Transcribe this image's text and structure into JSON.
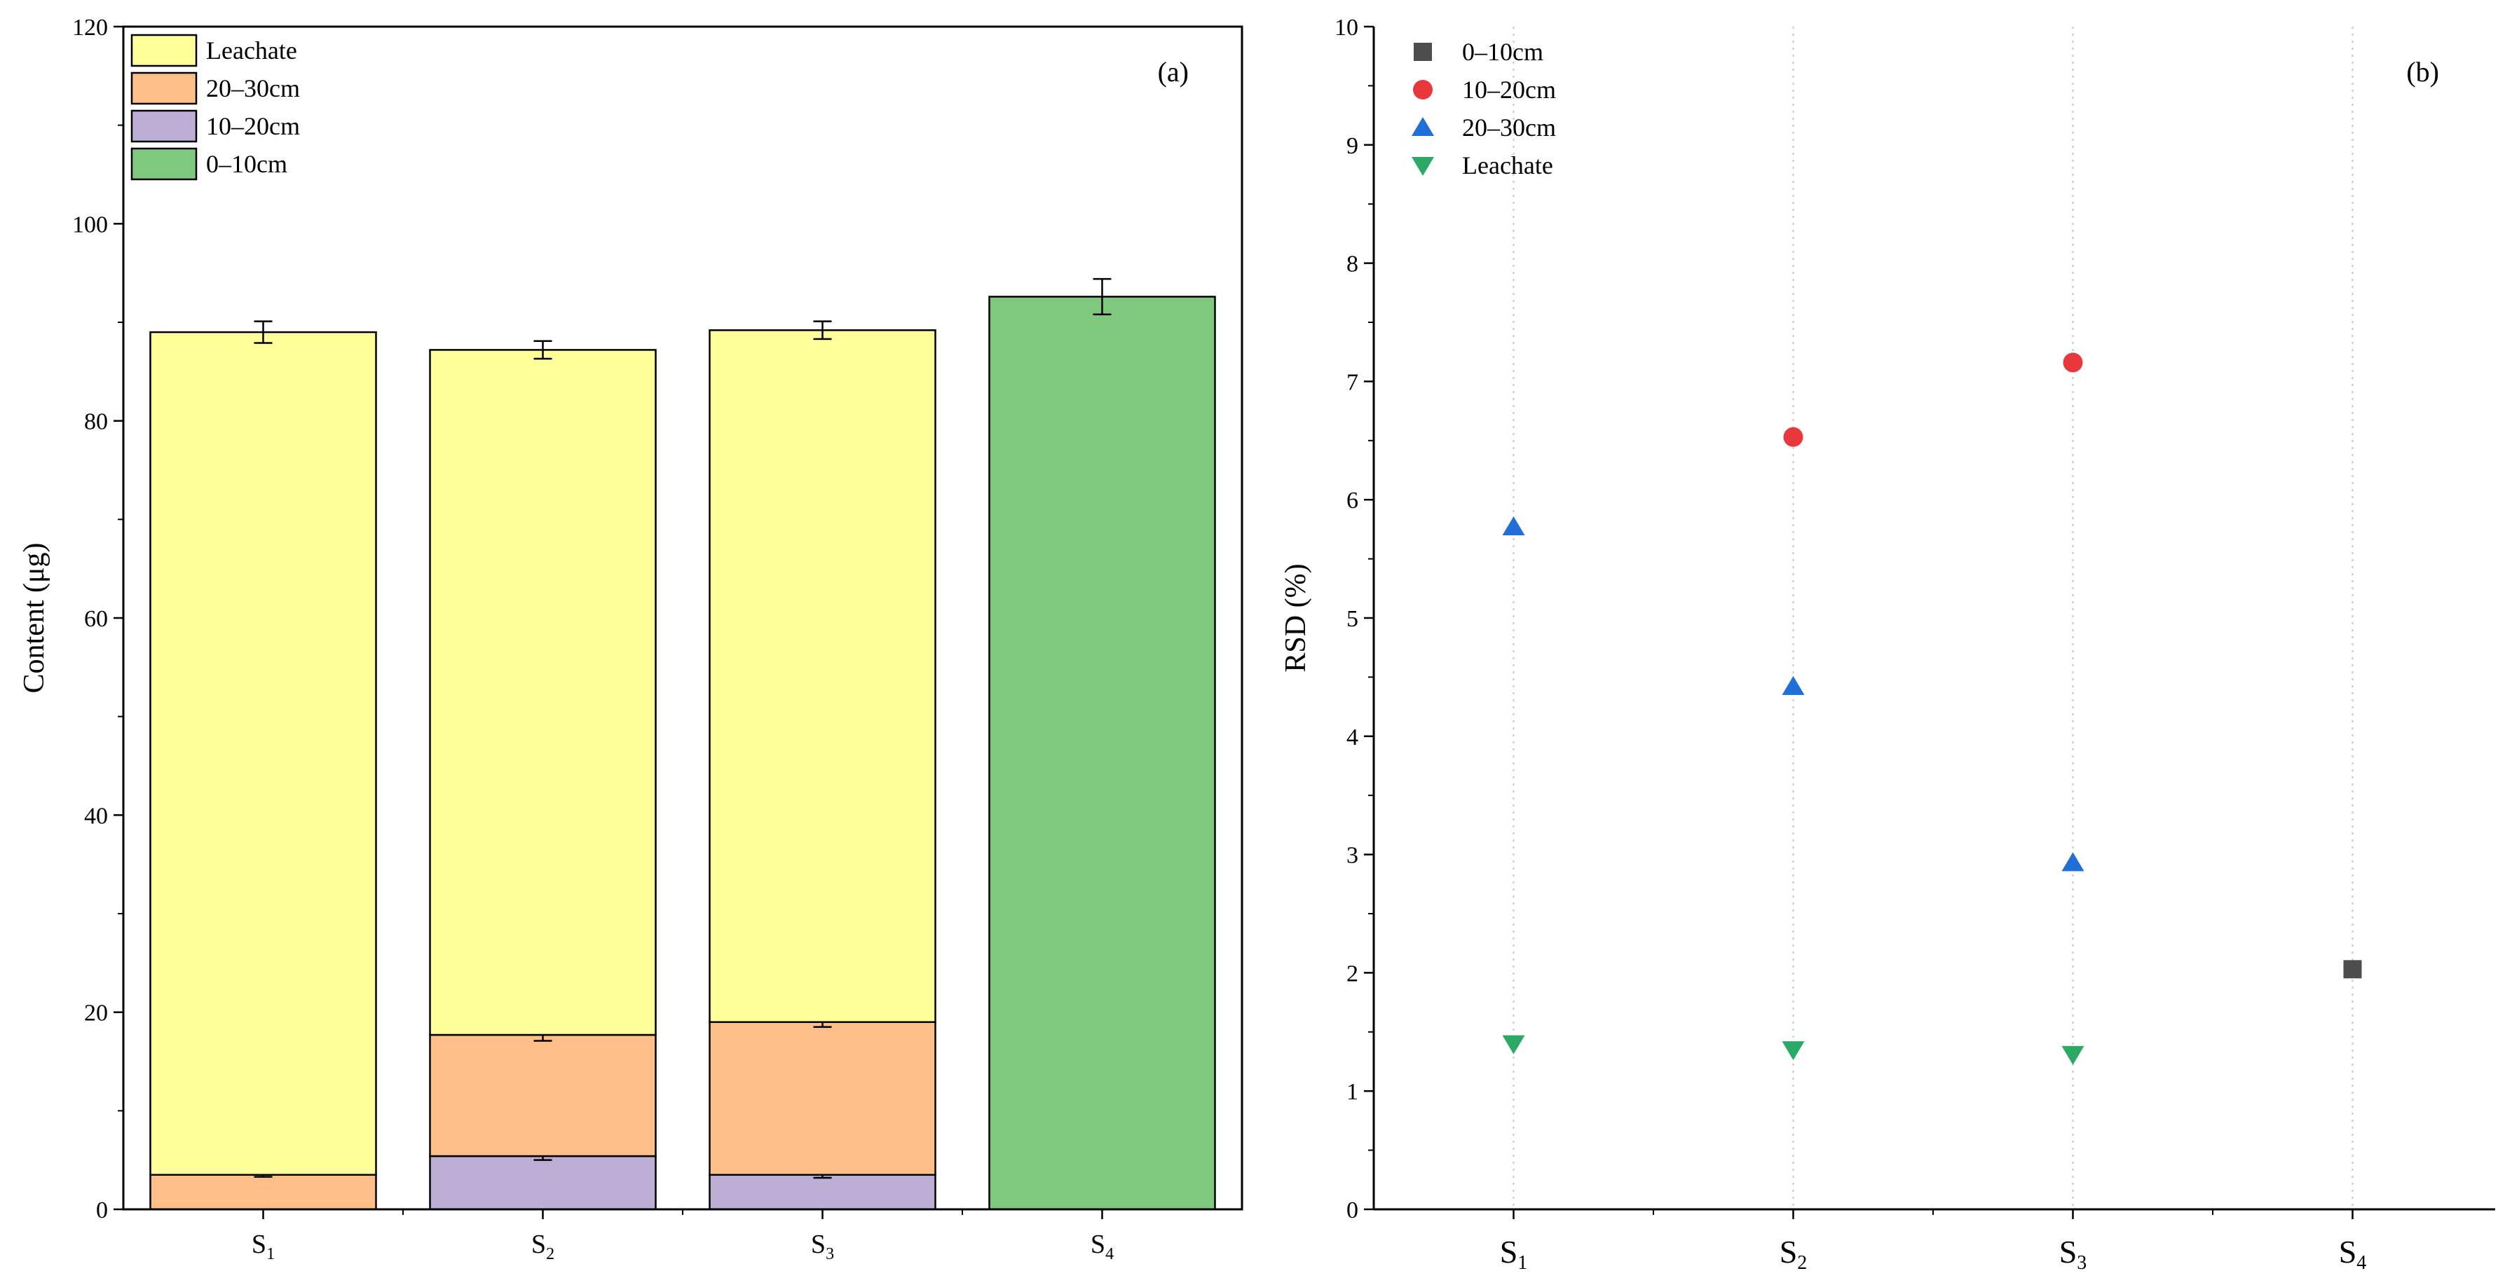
{
  "colors": {
    "leachate": "#FFFF99",
    "cm20_30_fill": "#FDBF87",
    "cm10_20_fill": "#BCAED5",
    "cm0_10_fill": "#7FC97F",
    "marker_0_10": "#4D4D4D",
    "marker_10_20": "#E8383D",
    "marker_20_30": "#1F6FD6",
    "marker_leachate": "#2BAA66",
    "axis": "#000000"
  },
  "chart_data": [
    {
      "type": "bar",
      "stacked": true,
      "panel_tag": "(a)",
      "title": "",
      "xlabel": "",
      "ylabel": "Content (μg)",
      "ylim": [
        0,
        120
      ],
      "yticks": [
        "0",
        "20",
        "40",
        "60",
        "80",
        "100",
        "120"
      ],
      "categories": [
        {
          "main": "S",
          "sub": "1"
        },
        {
          "main": "S",
          "sub": "2"
        },
        {
          "main": "S",
          "sub": "3"
        },
        {
          "main": "S",
          "sub": "4"
        }
      ],
      "legend": [
        "Leachate",
        "20–30cm",
        "10–20cm",
        "0–10cm"
      ],
      "legend_position": "top-left",
      "series": [
        {
          "name": "0–10cm",
          "values": [
            0,
            0,
            0,
            92.6
          ],
          "errors": [
            0,
            0,
            0,
            1.8
          ]
        },
        {
          "name": "10–20cm",
          "values": [
            0,
            5.4,
            3.5,
            0
          ],
          "errors": [
            0,
            0.4,
            0.3,
            0
          ]
        },
        {
          "name": "20–30cm",
          "values": [
            3.5,
            12.3,
            15.5,
            0
          ],
          "errors": [
            0.2,
            0.6,
            0.5,
            0
          ]
        },
        {
          "name": "Leachate",
          "values": [
            85.5,
            69.5,
            70.2,
            0
          ],
          "errors": [
            1.1,
            0.9,
            0.9,
            0
          ]
        }
      ]
    },
    {
      "type": "scatter",
      "panel_tag": "(b)",
      "title": "",
      "xlabel": "",
      "ylabel": "RSD (%)",
      "ylim": [
        0,
        10
      ],
      "yticks": [
        "0",
        "1",
        "2",
        "3",
        "4",
        "5",
        "6",
        "7",
        "8",
        "9",
        "10"
      ],
      "categories": [
        {
          "main": "S",
          "sub": "1"
        },
        {
          "main": "S",
          "sub": "2"
        },
        {
          "main": "S",
          "sub": "3"
        },
        {
          "main": "S",
          "sub": "4"
        }
      ],
      "legend_position": "top-left",
      "grid": "vertical dotted",
      "series": [
        {
          "name": "0–10cm",
          "marker": "square",
          "values": [
            null,
            null,
            null,
            2.03
          ]
        },
        {
          "name": "10–20cm",
          "marker": "circle",
          "values": [
            null,
            6.53,
            7.16,
            null
          ]
        },
        {
          "name": "20–30cm",
          "marker": "triangle-up",
          "values": [
            5.77,
            4.42,
            2.93,
            null
          ]
        },
        {
          "name": "Leachate",
          "marker": "triangle-down",
          "values": [
            1.4,
            1.35,
            1.31,
            null
          ]
        }
      ]
    }
  ]
}
